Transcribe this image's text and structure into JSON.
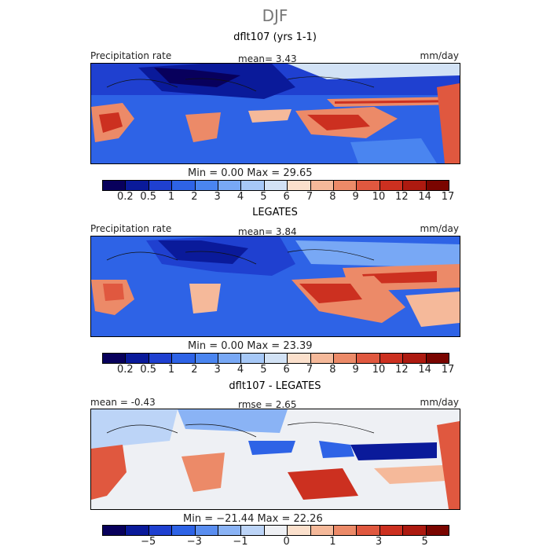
{
  "figure": {
    "title": "DJF",
    "panels": [
      {
        "title": "dflt107 (yrs 1-1)",
        "left_label": "Precipitation rate",
        "center_label": "mean=   3.43",
        "right_label": "mm/day",
        "minmax": "Min =    0.00  Max =   29.65",
        "colorbar": {
          "colors": [
            "#08005c",
            "#0a1a9a",
            "#1f40d0",
            "#2e63e6",
            "#4a85f0",
            "#78a8f5",
            "#a6c8f7",
            "#d2e2f5",
            "#fbe0cc",
            "#f5b99a",
            "#ec8a68",
            "#e0583f",
            "#cc3020",
            "#ad1a10",
            "#7a0500"
          ],
          "labels": [
            "0.2",
            "0.5",
            "1",
            "2",
            "3",
            "4",
            "5",
            "6",
            "7",
            "8",
            "9",
            "10",
            "12",
            "14",
            "17"
          ]
        }
      },
      {
        "title": "LEGATES",
        "left_label": "Precipitation rate",
        "center_label": "mean=   3.84",
        "right_label": "mm/day",
        "minmax": "Min =    0.00  Max =   23.39",
        "colorbar": {
          "colors": [
            "#08005c",
            "#0a1a9a",
            "#1f40d0",
            "#2e63e6",
            "#4a85f0",
            "#78a8f5",
            "#a6c8f7",
            "#d2e2f5",
            "#fbe0cc",
            "#f5b99a",
            "#ec8a68",
            "#e0583f",
            "#cc3020",
            "#ad1a10",
            "#7a0500"
          ],
          "labels": [
            "0.2",
            "0.5",
            "1",
            "2",
            "3",
            "4",
            "5",
            "6",
            "7",
            "8",
            "9",
            "10",
            "12",
            "14",
            "17"
          ]
        }
      },
      {
        "title": "dflt107 - LEGATES",
        "left_label": "mean =  -0.43",
        "center_label": "rmse =   2.65",
        "right_label": "mm/day",
        "minmax": "Min = −21.44  Max =   22.26",
        "colorbar": {
          "colors": [
            "#08005c",
            "#0a1a9a",
            "#1f40d0",
            "#2e63e6",
            "#5a8ef0",
            "#8ab3f5",
            "#bcd4f7",
            "#eef0f4",
            "#fbe0cc",
            "#f5b99a",
            "#ec8a68",
            "#e0583f",
            "#cc3020",
            "#ad1a10",
            "#7a0500"
          ],
          "labels": [
            "−5",
            "−3",
            "−1",
            "0",
            "1",
            "3",
            "5"
          ]
        }
      }
    ]
  }
}
